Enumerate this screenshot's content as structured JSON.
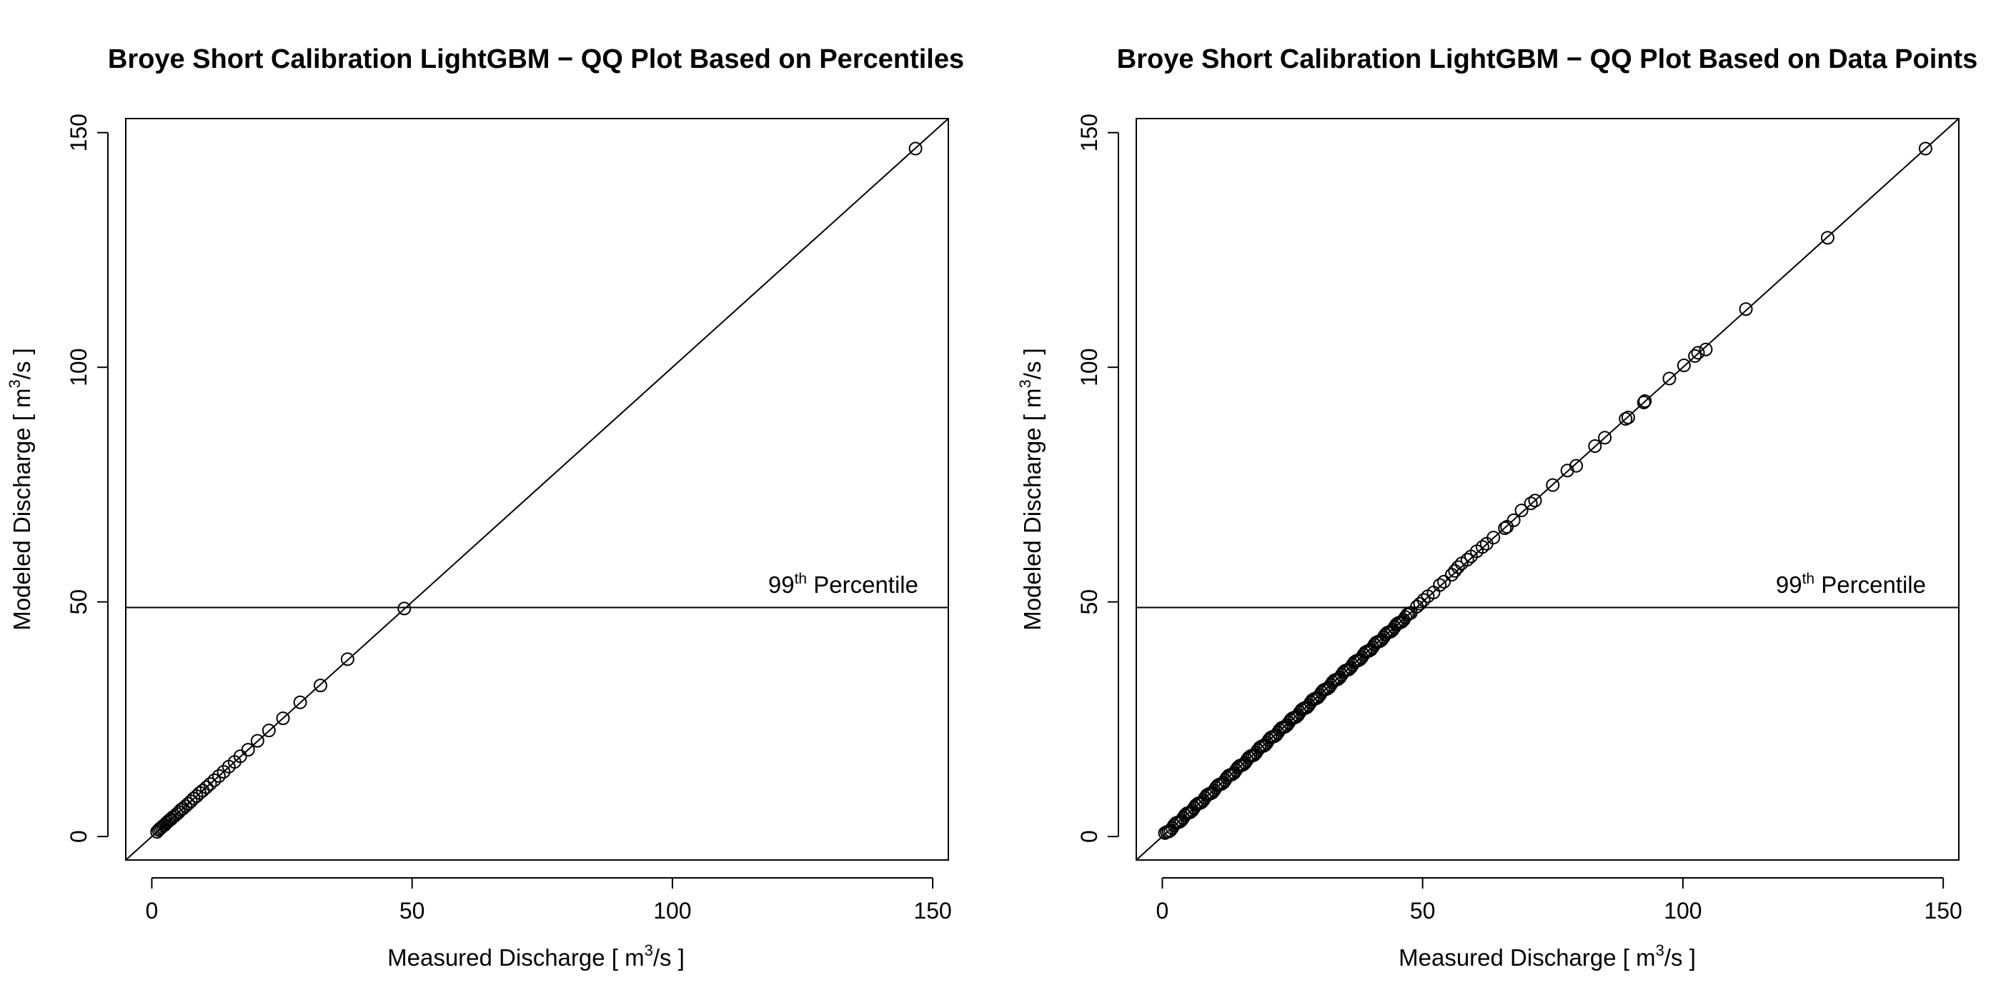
{
  "chart_data": [
    {
      "type": "scatter",
      "title": "Broye Short Calibration LightGBM − QQ Plot Based on Percentiles",
      "xlabel": {
        "main": "Measured Discharge [ m",
        "sup": "3",
        "tail": "/s ]"
      },
      "ylabel": {
        "main": "Modeled Discharge [ m",
        "sup": "3",
        "tail": "/s ]"
      },
      "xlim": [
        -5,
        153
      ],
      "ylim": [
        -5,
        153
      ],
      "x_ticks": [
        0,
        50,
        100,
        150
      ],
      "y_ticks": [
        0,
        50,
        100,
        150
      ],
      "reference_line": "y = x",
      "hline": {
        "y": 48.8,
        "label_prefix": "99",
        "label_sup": "th",
        "label_suffix": " Percentile"
      },
      "points": [
        [
          1.0,
          1.0
        ],
        [
          1.3,
          1.4
        ],
        [
          1.6,
          1.7
        ],
        [
          1.9,
          2.0
        ],
        [
          2.2,
          2.3
        ],
        [
          2.5,
          2.5
        ],
        [
          2.8,
          2.9
        ],
        [
          3.1,
          3.2
        ],
        [
          3.4,
          3.5
        ],
        [
          3.7,
          3.7
        ],
        [
          4.0,
          4.1
        ],
        [
          4.4,
          4.4
        ],
        [
          4.8,
          4.8
        ],
        [
          5.2,
          5.2
        ],
        [
          5.6,
          5.7
        ],
        [
          6.0,
          6.0
        ],
        [
          6.5,
          6.5
        ],
        [
          7.0,
          7.0
        ],
        [
          7.5,
          7.5
        ],
        [
          8.0,
          8.1
        ],
        [
          8.6,
          8.6
        ],
        [
          9.2,
          9.3
        ],
        [
          9.8,
          9.8
        ],
        [
          10.5,
          10.5
        ],
        [
          11.2,
          11.2
        ],
        [
          12.0,
          12.0
        ],
        [
          12.9,
          12.9
        ],
        [
          13.8,
          13.8
        ],
        [
          14.8,
          14.9
        ],
        [
          15.9,
          15.9
        ],
        [
          17.0,
          17.1
        ],
        [
          18.5,
          18.5
        ],
        [
          20.3,
          20.4
        ],
        [
          22.5,
          22.6
        ],
        [
          25.2,
          25.2
        ],
        [
          28.5,
          28.6
        ],
        [
          32.4,
          32.2
        ],
        [
          37.6,
          37.8
        ],
        [
          48.5,
          48.6
        ],
        [
          146.7,
          146.6
        ]
      ]
    },
    {
      "type": "scatter",
      "title": "Broye Short Calibration LightGBM − QQ Plot Based on Data Points",
      "xlabel": {
        "main": "Measured Discharge [ m",
        "sup": "3",
        "tail": "/s ]"
      },
      "ylabel": {
        "main": "Modeled Discharge [ m",
        "sup": "3",
        "tail": "/s ]"
      },
      "xlim": [
        -5,
        153
      ],
      "ylim": [
        -5,
        153
      ],
      "x_ticks": [
        0,
        50,
        100,
        150
      ],
      "y_ticks": [
        0,
        50,
        100,
        150
      ],
      "reference_line": "y = x",
      "hline": {
        "y": 48.8,
        "label_prefix": "99",
        "label_sup": "th",
        "label_suffix": " Percentile"
      },
      "dense_range": [
        0.5,
        48.0
      ],
      "points": [
        [
          48.9,
          49.0
        ],
        [
          49.5,
          49.6
        ],
        [
          50.2,
          50.4
        ],
        [
          51.0,
          51.2
        ],
        [
          52.1,
          52.0
        ],
        [
          53.3,
          53.6
        ],
        [
          54.1,
          54.3
        ],
        [
          55.6,
          55.8
        ],
        [
          56.2,
          56.6
        ],
        [
          56.8,
          57.4
        ],
        [
          57.5,
          58.2
        ],
        [
          58.6,
          59.0
        ],
        [
          59.3,
          59.7
        ],
        [
          60.4,
          60.8
        ],
        [
          61.5,
          61.7
        ],
        [
          62.3,
          62.4
        ],
        [
          63.6,
          63.7
        ],
        [
          65.8,
          65.7
        ],
        [
          66.2,
          66.0
        ],
        [
          67.5,
          67.4
        ],
        [
          69.0,
          69.5
        ],
        [
          70.8,
          71.0
        ],
        [
          71.6,
          71.6
        ],
        [
          75.0,
          74.9
        ],
        [
          77.8,
          78.0
        ],
        [
          79.5,
          79.0
        ],
        [
          83.1,
          83.2
        ],
        [
          85.0,
          85.0
        ],
        [
          89.0,
          89.0
        ],
        [
          89.5,
          89.3
        ],
        [
          92.5,
          92.5
        ],
        [
          92.7,
          92.8
        ],
        [
          97.4,
          97.6
        ],
        [
          100.2,
          100.4
        ],
        [
          102.3,
          102.4
        ],
        [
          102.9,
          103.1
        ],
        [
          104.4,
          103.8
        ],
        [
          112.1,
          112.4
        ],
        [
          127.8,
          127.6
        ],
        [
          146.6,
          146.6
        ]
      ]
    }
  ]
}
